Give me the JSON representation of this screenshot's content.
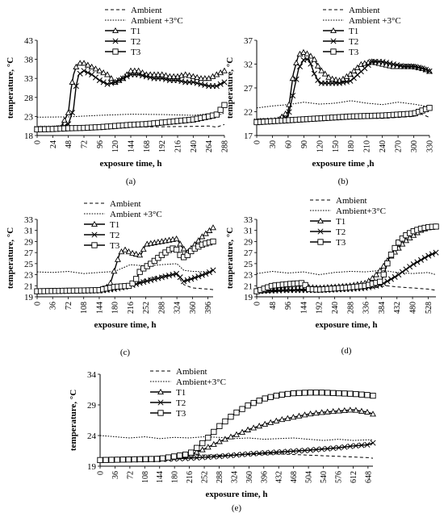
{
  "chart_data": [
    {
      "panel_label": "(a)",
      "type": "line",
      "xlabel": "exposure time, h",
      "ylabel": "temperature, °C",
      "xticks": [
        0,
        24,
        48,
        72,
        96,
        120,
        144,
        168,
        192,
        216,
        240,
        264,
        288
      ],
      "yticks": [
        18,
        23,
        28,
        33,
        38,
        43
      ],
      "xlim": [
        0,
        288
      ],
      "ylim": [
        18,
        43
      ],
      "legend_position": "top",
      "series": [
        {
          "name": "Ambient",
          "style": "dashed",
          "x": [
            0,
            48,
            96,
            144,
            192,
            240,
            264,
            276,
            288
          ],
          "y": [
            19.8,
            19.9,
            20.1,
            20.2,
            20.3,
            20.4,
            20.5,
            20.2,
            20.9
          ]
        },
        {
          "name": "Ambient +3°C",
          "style": "dotted",
          "x": [
            0,
            48,
            96,
            144,
            192,
            240,
            264,
            276,
            288
          ],
          "y": [
            22.8,
            22.9,
            23.3,
            23.6,
            23.5,
            23.3,
            23.7,
            23.2,
            23.9
          ]
        },
        {
          "name": "T1",
          "style": "solid",
          "marker": "triangle",
          "x": [
            0,
            24,
            36,
            48,
            52,
            56,
            60,
            64,
            72,
            84,
            96,
            108,
            120,
            132,
            144,
            156,
            168,
            180,
            192,
            204,
            216,
            228,
            240,
            252,
            264,
            276,
            288
          ],
          "y": [
            19.8,
            19.8,
            20,
            24,
            30,
            34,
            36,
            37,
            37,
            36,
            35,
            34,
            32,
            33,
            35,
            35,
            34,
            34,
            34,
            33.5,
            33.5,
            34,
            33.5,
            33,
            33,
            34,
            35
          ]
        },
        {
          "name": "T2",
          "style": "solid",
          "marker": "x",
          "x": [
            0,
            24,
            36,
            48,
            56,
            60,
            64,
            72,
            84,
            96,
            108,
            120,
            132,
            144,
            156,
            168,
            180,
            192,
            204,
            216,
            228,
            240,
            252,
            264,
            276,
            288
          ],
          "y": [
            19.8,
            19.8,
            20,
            21,
            25,
            31,
            34,
            35,
            34,
            32.5,
            31.5,
            32,
            33,
            34,
            34,
            33.5,
            33,
            33,
            32.5,
            32.5,
            32,
            32,
            31.5,
            31,
            31,
            32
          ]
        },
        {
          "name": "T3",
          "style": "solid",
          "marker": "square",
          "x": [
            0,
            24,
            48,
            72,
            96,
            120,
            144,
            168,
            192,
            216,
            240,
            252,
            264,
            276,
            288
          ],
          "y": [
            19.6,
            19.7,
            19.9,
            20,
            20.2,
            20.5,
            20.8,
            21,
            21.4,
            21.8,
            22.2,
            22.6,
            23,
            23.5,
            26
          ]
        }
      ]
    },
    {
      "panel_label": "(b)",
      "type": "line",
      "xlabel": "exposure time ,h",
      "ylabel": "temperature, °C",
      "xticks": [
        0,
        30,
        60,
        90,
        120,
        150,
        180,
        210,
        240,
        270,
        300,
        330
      ],
      "yticks": [
        17,
        22,
        27,
        32,
        37
      ],
      "xlim": [
        0,
        330
      ],
      "ylim": [
        17,
        37
      ],
      "legend_position": "top",
      "series": [
        {
          "name": "Ambient",
          "style": "dashed",
          "x": [
            0,
            60,
            120,
            180,
            240,
            300,
            315,
            330
          ],
          "y": [
            19.6,
            20,
            20.4,
            20.6,
            20.6,
            21,
            21.5,
            20.8
          ]
        },
        {
          "name": "Ambient +3°C",
          "style": "dotted",
          "x": [
            0,
            30,
            60,
            90,
            120,
            150,
            180,
            210,
            240,
            270,
            300,
            330
          ],
          "y": [
            22.8,
            23.2,
            23.5,
            24,
            23.6,
            23.8,
            24.3,
            23.8,
            23.5,
            24,
            23.6,
            23
          ]
        },
        {
          "name": "T1",
          "style": "solid",
          "marker": "triangle",
          "x": [
            0,
            40,
            60,
            70,
            80,
            90,
            100,
            110,
            120,
            140,
            160,
            180,
            200,
            220,
            240,
            260,
            280,
            300,
            320,
            330
          ],
          "y": [
            20,
            20.2,
            22,
            30,
            34,
            34.5,
            34,
            33,
            31,
            29,
            28.5,
            30,
            32,
            32.5,
            32,
            31.5,
            31.5,
            31.5,
            31,
            30.5
          ]
        },
        {
          "name": "T2",
          "style": "solid",
          "marker": "x",
          "x": [
            0,
            40,
            60,
            70,
            80,
            90,
            100,
            110,
            120,
            140,
            160,
            180,
            200,
            220,
            240,
            260,
            280,
            300,
            320,
            330
          ],
          "y": [
            20,
            20.1,
            21,
            26,
            31,
            33,
            33,
            30,
            28,
            28,
            28,
            28.5,
            30.5,
            32.5,
            32.5,
            32,
            31.5,
            31.5,
            31,
            30.5
          ]
        },
        {
          "name": "T3",
          "style": "solid",
          "marker": "square",
          "x": [
            0,
            60,
            120,
            180,
            240,
            300,
            315,
            330
          ],
          "y": [
            19.8,
            20.2,
            20.6,
            21,
            21.2,
            21.6,
            22.2,
            22.8
          ]
        }
      ]
    },
    {
      "panel_label": "(c)",
      "type": "line",
      "xlabel": "exposure time, h",
      "ylabel": "temperature, °C",
      "xticks": [
        0,
        36,
        72,
        108,
        144,
        180,
        216,
        252,
        288,
        324,
        360,
        396
      ],
      "yticks": [
        19,
        21,
        23,
        25,
        27,
        29,
        31,
        33
      ],
      "xlim": [
        0,
        408
      ],
      "ylim": [
        19,
        33
      ],
      "legend_position": "top",
      "series": [
        {
          "name": "Ambient",
          "style": "dashed",
          "x": [
            0,
            72,
            144,
            180,
            216,
            252,
            288,
            324,
            340,
            360,
            396,
            408
          ],
          "y": [
            19.8,
            20,
            20.1,
            20.4,
            21,
            22.2,
            22.8,
            23,
            21.2,
            20.6,
            20.4,
            20.3
          ]
        },
        {
          "name": "Ambient +3°C",
          "style": "dotted",
          "x": [
            0,
            36,
            72,
            108,
            144,
            180,
            216,
            252,
            288,
            324,
            340,
            360,
            396,
            408
          ],
          "y": [
            23.5,
            23.4,
            23.6,
            23.2,
            23.4,
            23.6,
            24.8,
            24.6,
            24.8,
            25,
            23.8,
            23.6,
            23.5,
            23.5
          ]
        },
        {
          "name": "T1",
          "style": "solid",
          "marker": "triangle",
          "x": [
            0,
            144,
            168,
            180,
            192,
            204,
            216,
            240,
            252,
            288,
            324,
            336,
            348,
            360,
            384,
            408
          ],
          "y": [
            20,
            20.2,
            21,
            24,
            27,
            27.5,
            27,
            26.5,
            28.5,
            29,
            29.5,
            28,
            27,
            28,
            30,
            31.5
          ]
        },
        {
          "name": "T2",
          "style": "solid",
          "marker": "x",
          "x": [
            0,
            144,
            180,
            216,
            252,
            288,
            324,
            340,
            360,
            396,
            408
          ],
          "y": [
            20,
            20.1,
            20.4,
            21,
            21.8,
            22.5,
            23.2,
            21.8,
            22.3,
            23.3,
            23.8
          ]
        },
        {
          "name": "T3",
          "style": "solid",
          "marker": "square",
          "x": [
            0,
            144,
            180,
            216,
            228,
            240,
            264,
            288,
            312,
            324,
            336,
            348,
            360,
            384,
            408
          ],
          "y": [
            20,
            20.2,
            20.8,
            21,
            22,
            23.8,
            25,
            26.5,
            27.8,
            27.5,
            26,
            26.5,
            27.5,
            28.5,
            29
          ]
        }
      ]
    },
    {
      "panel_label": "(d)",
      "type": "line",
      "xlabel": "exposure time, h",
      "ylabel": "temperature, °C",
      "xticks": [
        0,
        48,
        96,
        144,
        192,
        240,
        288,
        336,
        384,
        432,
        480,
        528
      ],
      "yticks": [
        19,
        21,
        23,
        25,
        27,
        29,
        31,
        33
      ],
      "xlim": [
        0,
        552
      ],
      "ylim": [
        19,
        33
      ],
      "legend_position": "top",
      "series": [
        {
          "name": "Ambient",
          "style": "dashed",
          "x": [
            0,
            96,
            192,
            288,
            360,
            400,
            432,
            480,
            528,
            552
          ],
          "y": [
            19.8,
            20,
            20.2,
            20.3,
            20.6,
            21,
            20.8,
            20.6,
            20.4,
            20.2
          ]
        },
        {
          "name": "Ambient+3°C",
          "style": "dotted",
          "x": [
            0,
            48,
            96,
            144,
            192,
            240,
            288,
            336,
            384,
            432,
            480,
            528,
            552
          ],
          "y": [
            23.2,
            23.6,
            23.3,
            23.5,
            23,
            23.4,
            23.6,
            23.5,
            23.8,
            23.4,
            23.2,
            23.4,
            23
          ]
        },
        {
          "name": "T1",
          "style": "solid",
          "marker": "triangle",
          "x": [
            0,
            72,
            144,
            192,
            240,
            288,
            336,
            360,
            384,
            408,
            432,
            456,
            480,
            504,
            528,
            552
          ],
          "y": [
            20,
            20.4,
            20.8,
            20.6,
            20.8,
            21,
            21.5,
            22.5,
            24,
            26,
            27.5,
            29,
            30,
            31,
            31.5,
            31.7
          ]
        },
        {
          "name": "T2",
          "style": "solid",
          "marker": "x",
          "x": [
            0,
            96,
            192,
            288,
            336,
            384,
            432,
            480,
            528,
            552
          ],
          "y": [
            20,
            20.2,
            20.2,
            20.4,
            20.6,
            21.2,
            22.8,
            24.8,
            26.4,
            27
          ]
        },
        {
          "name": "T3",
          "style": "solid",
          "marker": "square",
          "x": [
            0,
            48,
            96,
            144,
            160,
            192,
            240,
            288,
            336,
            384,
            408,
            432,
            456,
            480,
            504,
            528,
            552
          ],
          "y": [
            20,
            21,
            21.3,
            21.5,
            20.4,
            20.3,
            20.5,
            20.7,
            21,
            21.8,
            26,
            28.5,
            30,
            30.8,
            31.3,
            31.6,
            31.7
          ]
        }
      ]
    },
    {
      "panel_label": "(e)",
      "type": "line",
      "xlabel": "exposure time, h",
      "ylabel": "temperature, °C",
      "xticks": [
        0,
        36,
        72,
        108,
        144,
        180,
        216,
        252,
        288,
        324,
        360,
        396,
        432,
        468,
        504,
        540,
        576,
        612,
        648
      ],
      "yticks": [
        19,
        24,
        29,
        34
      ],
      "xlim": [
        0,
        660
      ],
      "ylim": [
        19,
        34
      ],
      "legend_position": "top",
      "series": [
        {
          "name": "Ambient",
          "style": "dashed",
          "x": [
            0,
            72,
            144,
            216,
            288,
            360,
            432,
            504,
            576,
            648,
            660
          ],
          "y": [
            20.3,
            20.5,
            20.6,
            20.8,
            20.8,
            20.9,
            21,
            20.8,
            20.6,
            20.4,
            20.3
          ]
        },
        {
          "name": "Ambient+3°C",
          "style": "dotted",
          "x": [
            0,
            36,
            72,
            108,
            144,
            180,
            216,
            252,
            288,
            324,
            360,
            396,
            432,
            468,
            504,
            540,
            576,
            612,
            648,
            660
          ],
          "y": [
            24,
            23.8,
            23.6,
            23.8,
            23.5,
            23.7,
            23.6,
            23.8,
            23.7,
            23.5,
            23.6,
            23.4,
            23.5,
            23.6,
            23.4,
            23.2,
            23.4,
            23.2,
            23.3,
            23.3
          ]
        },
        {
          "name": "T1",
          "style": "solid",
          "marker": "triangle",
          "x": [
            0,
            144,
            216,
            252,
            288,
            324,
            360,
            396,
            432,
            468,
            504,
            540,
            576,
            612,
            648,
            660
          ],
          "y": [
            20,
            20.2,
            20.8,
            21.8,
            23,
            24,
            25,
            25.8,
            26.5,
            27,
            27.5,
            27.8,
            28,
            28.2,
            27.8,
            27.5
          ]
        },
        {
          "name": "T2",
          "style": "solid",
          "marker": "x",
          "x": [
            0,
            144,
            216,
            288,
            360,
            432,
            504,
            576,
            612,
            648,
            660
          ],
          "y": [
            20,
            20.1,
            20.3,
            20.6,
            21,
            21.3,
            21.6,
            22,
            22.3,
            22.5,
            22.8
          ]
        },
        {
          "name": "T3",
          "style": "solid",
          "marker": "square",
          "x": [
            0,
            144,
            216,
            252,
            288,
            324,
            360,
            396,
            432,
            468,
            504,
            540,
            576,
            612,
            648,
            660
          ],
          "y": [
            20,
            20.2,
            21,
            23,
            25.5,
            27.5,
            29,
            30,
            30.6,
            30.9,
            31,
            31,
            30.9,
            30.8,
            30.6,
            30.5
          ]
        }
      ]
    }
  ]
}
